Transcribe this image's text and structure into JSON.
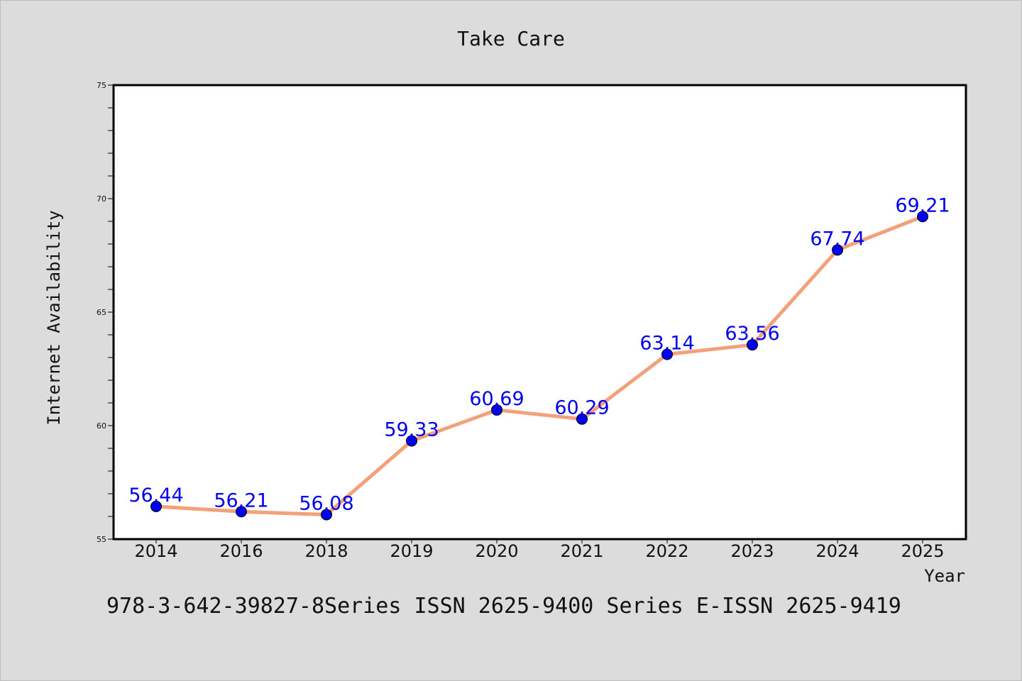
{
  "chart_data": {
    "type": "line",
    "title": "Take Care",
    "xlabel": "Year",
    "ylabel": "Internet Availability",
    "categories": [
      "2014",
      "2016",
      "2018",
      "2019",
      "2020",
      "2021",
      "2022",
      "2023",
      "2024",
      "2025"
    ],
    "series": [
      {
        "values": [
          56.44,
          56.21,
          56.08,
          59.33,
          60.69,
          60.29,
          63.14,
          63.56,
          67.74,
          69.21
        ],
        "labels": [
          "56.44",
          "56.21",
          "56.08",
          "59.33",
          "60.69",
          "60.29",
          "63.14",
          "63.56",
          "67.74",
          "69.21"
        ],
        "line_color": "#f4a07a",
        "marker_color": "#0000ee"
      }
    ],
    "ylim": [
      55,
      75
    ],
    "y_ticks": [
      "55",
      "60",
      "65",
      "70",
      "75"
    ],
    "label_color": "#0000ee",
    "grid": false,
    "footnote": "978-3-642-39827-8Series ISSN 2625-9400 Series E-ISSN 2625-9419"
  }
}
